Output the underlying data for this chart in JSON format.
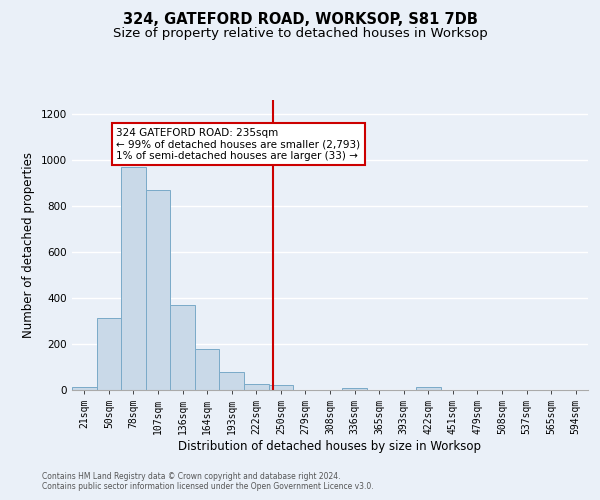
{
  "title": "324, GATEFORD ROAD, WORKSOP, S81 7DB",
  "subtitle": "Size of property relative to detached houses in Worksop",
  "xlabel": "Distribution of detached houses by size in Worksop",
  "ylabel": "Number of detached properties",
  "footnote1": "Contains HM Land Registry data © Crown copyright and database right 2024.",
  "footnote2": "Contains public sector information licensed under the Open Government Licence v3.0.",
  "bar_labels": [
    "21sqm",
    "50sqm",
    "78sqm",
    "107sqm",
    "136sqm",
    "164sqm",
    "193sqm",
    "222sqm",
    "250sqm",
    "279sqm",
    "308sqm",
    "336sqm",
    "365sqm",
    "393sqm",
    "422sqm",
    "451sqm",
    "479sqm",
    "508sqm",
    "537sqm",
    "565sqm",
    "594sqm"
  ],
  "bar_values": [
    15,
    315,
    970,
    870,
    370,
    180,
    80,
    25,
    20,
    0,
    0,
    10,
    0,
    0,
    12,
    0,
    0,
    0,
    0,
    0,
    0
  ],
  "bar_color": "#c9d9e8",
  "bar_edge_color": "#7aaac8",
  "vline_x": 7.67,
  "vline_color": "#cc0000",
  "annotation_text": "324 GATEFORD ROAD: 235sqm\n← 99% of detached houses are smaller (2,793)\n1% of semi-detached houses are larger (33) →",
  "annotation_box_color": "#ffffff",
  "annotation_box_edge": "#cc0000",
  "ylim": [
    0,
    1260
  ],
  "yticks": [
    0,
    200,
    400,
    600,
    800,
    1000,
    1200
  ],
  "background_color": "#eaf0f8",
  "grid_color": "#ffffff",
  "title_fontsize": 10.5,
  "subtitle_fontsize": 9.5,
  "tick_fontsize": 7,
  "ylabel_fontsize": 8.5,
  "xlabel_fontsize": 8.5,
  "footnote_fontsize": 5.5
}
